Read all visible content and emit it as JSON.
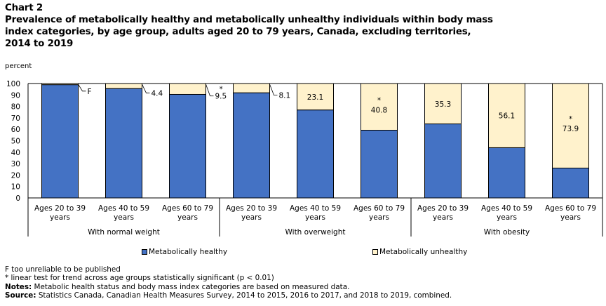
{
  "chart_label": "Chart 2",
  "title_lines": [
    "Prevalence of metabolically healthy and metabolically unhealthy individuals within body mass",
    "index categories, by age group, adults aged 20 to 79 years, Canada, excluding territories,",
    "2014 to 2019"
  ],
  "colors": {
    "healthy": "#4472C4",
    "unhealthy": "#FFF2CC",
    "outline": "#000000"
  },
  "chart_data": {
    "type": "bar",
    "stacked": true,
    "title": "Prevalence of metabolically healthy and metabolically unhealthy individuals within body mass index categories, by age group, adults aged 20 to 79 years, Canada, excluding territories, 2014 to 2019",
    "ylabel": "percent",
    "xlabel": "",
    "ylim": [
      0,
      100
    ],
    "yticks": [
      0,
      10,
      20,
      30,
      40,
      50,
      60,
      70,
      80,
      90,
      100
    ],
    "grid": false,
    "categories": [
      [
        "Ages 20 to 39",
        "years"
      ],
      [
        "Ages 40 to 59",
        "years"
      ],
      [
        "Ages 60 to 79",
        "years"
      ],
      [
        "Ages 20 to 39",
        "years"
      ],
      [
        "Ages 40 to 59",
        "years"
      ],
      [
        "Ages 60 to 79",
        "years"
      ],
      [
        "Ages 20 to 39",
        "years"
      ],
      [
        "Ages 40 to 59",
        "years"
      ],
      [
        "Ages 60 to 79",
        "years"
      ]
    ],
    "groups": [
      {
        "label": "With normal weight",
        "span": 3
      },
      {
        "label": "With overweight",
        "span": 3
      },
      {
        "label": "With obesity",
        "span": 3
      }
    ],
    "series": [
      {
        "name": "Metabolically healthy",
        "values": [
          99.0,
          95.6,
          90.5,
          91.9,
          76.9,
          59.2,
          64.7,
          43.9,
          26.1
        ]
      },
      {
        "name": "Metabolically unhealthy",
        "values": [
          1.0,
          4.4,
          9.5,
          8.1,
          23.1,
          40.8,
          35.3,
          56.1,
          73.9
        ]
      }
    ],
    "data_labels": [
      "F",
      "4.4",
      "9.5",
      "8.1",
      "23.1",
      "40.8",
      "35.3",
      "56.1",
      "73.9"
    ],
    "label_outside": [
      true,
      true,
      true,
      true,
      false,
      false,
      false,
      false,
      false
    ],
    "significance_marks": [
      "",
      "",
      "*",
      "",
      "",
      "*",
      "",
      "",
      "*"
    ],
    "legend": {
      "placement": "bottom",
      "entries": [
        "Metabolically healthy",
        "Metabolically unhealthy"
      ]
    }
  },
  "footnotes": {
    "f_note": "F too unreliable to be published",
    "star_note": "* linear test for trend across age groups statistically significant (p < 0.01)",
    "notes_label": "Notes:",
    "notes_text": " Metabolic health status and body mass index categories are based on measured data.",
    "source_label": "Source:",
    "source_text": " Statistics Canada, Canadian Health Measures Survey, 2014 to 2015, 2016 to 2017, and 2018 to 2019, combined."
  }
}
